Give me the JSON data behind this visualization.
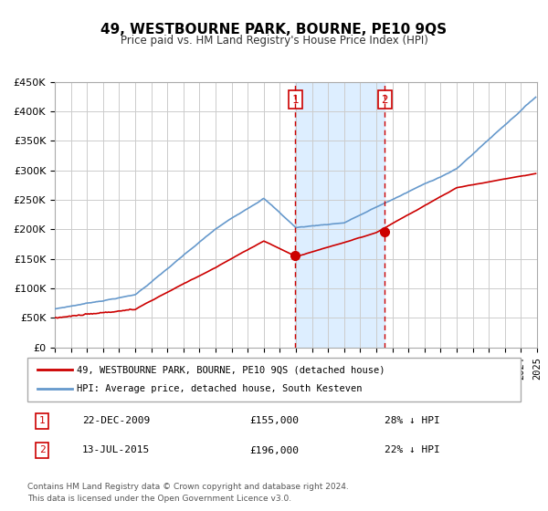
{
  "title": "49, WESTBOURNE PARK, BOURNE, PE10 9QS",
  "subtitle": "Price paid vs. HM Land Registry's House Price Index (HPI)",
  "legend_line1": "49, WESTBOURNE PARK, BOURNE, PE10 9QS (detached house)",
  "legend_line2": "HPI: Average price, detached house, South Kesteven",
  "footnote1": "Contains HM Land Registry data © Crown copyright and database right 2024.",
  "footnote2": "This data is licensed under the Open Government Licence v3.0.",
  "red_color": "#cc0000",
  "blue_color": "#6699cc",
  "marker_color": "#cc0000",
  "vline_color": "#cc0000",
  "shade_color": "#ddeeff",
  "grid_color": "#cccccc",
  "background_color": "#ffffff",
  "ylim": [
    0,
    450000
  ],
  "ytick_labels": [
    "£0",
    "£50K",
    "£100K",
    "£150K",
    "£200K",
    "£250K",
    "£300K",
    "£350K",
    "£400K",
    "£450K"
  ],
  "ytick_values": [
    0,
    50000,
    100000,
    150000,
    200000,
    250000,
    300000,
    350000,
    400000,
    450000
  ],
  "xstart_year": 1995,
  "xend_year": 2025,
  "event1_date": 2009.97,
  "event1_label": "1",
  "event1_price": 155000,
  "event1_text": "22-DEC-2009",
  "event1_pct": "28% ↓ HPI",
  "event2_date": 2015.53,
  "event2_label": "2",
  "event2_price": 196000,
  "event2_text": "13-JUL-2015",
  "event2_pct": "22% ↓ HPI",
  "table_row1": [
    "1",
    "22-DEC-2009",
    "£155,000",
    "28% ↓ HPI"
  ],
  "table_row2": [
    "2",
    "13-JUL-2015",
    "£196,000",
    "22% ↓ HPI"
  ]
}
